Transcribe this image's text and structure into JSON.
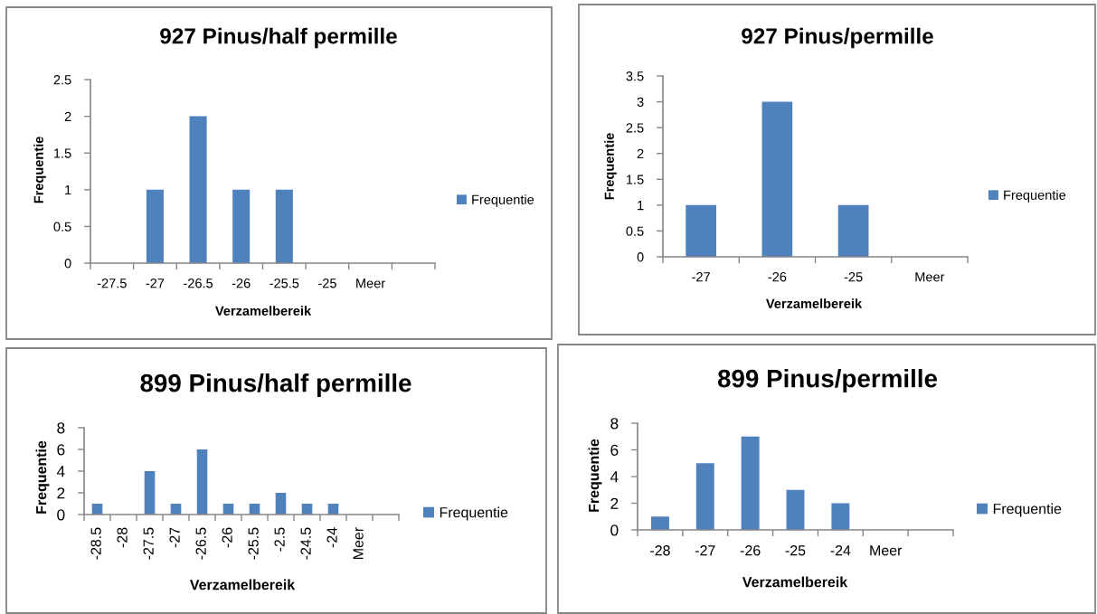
{
  "chart_data": [
    {
      "type": "bar",
      "title": "927 Pinus/half permille",
      "xlabel": "Verzamelbereik",
      "ylabel": "Frequentie",
      "categories": [
        "-27.5",
        "-27",
        "-26.5",
        "-26",
        "-25.5",
        "-25",
        "Meer",
        null
      ],
      "series": [
        {
          "name": "Frequentie",
          "color": "#4f81bd",
          "values": [
            0,
            1,
            2,
            1,
            1,
            0,
            0,
            null
          ]
        }
      ],
      "ylim": [
        0,
        2.5
      ],
      "yticks": [
        0,
        0.5,
        1,
        1.5,
        2,
        2.5
      ],
      "legend": "right"
    },
    {
      "type": "bar",
      "title": "927 Pinus/permille",
      "xlabel": "Verzamelbereik",
      "ylabel": "Frequentie",
      "categories": [
        "-27",
        "-26",
        "-25",
        "Meer"
      ],
      "series": [
        {
          "name": "Frequentie",
          "color": "#4f81bd",
          "values": [
            1,
            3,
            1,
            0
          ]
        }
      ],
      "ylim": [
        0,
        3.5
      ],
      "yticks": [
        0,
        0.5,
        1,
        1.5,
        2,
        2.5,
        3,
        3.5
      ],
      "legend": "right"
    },
    {
      "type": "bar",
      "title": "899 Pinus/half permille",
      "xlabel": "Verzamelbereik",
      "ylabel": "Frequentie",
      "categories": [
        "-28.5",
        "-28",
        "-27.5",
        "-27",
        "-26.5",
        "-26",
        "-25.5",
        "-2.5",
        "-24.5",
        "-24",
        "Meer",
        null
      ],
      "series": [
        {
          "name": "Frequentie",
          "color": "#4f81bd",
          "values": [
            1,
            0,
            4,
            1,
            6,
            1,
            1,
            2,
            1,
            1,
            0,
            null
          ]
        }
      ],
      "ylim": [
        0,
        8
      ],
      "yticks": [
        0,
        2,
        4,
        6,
        8
      ],
      "legend": "right"
    },
    {
      "type": "bar",
      "title": "899 Pinus/permille",
      "xlabel": "Verzamelbereik",
      "ylabel": "Frequentie",
      "categories": [
        "-28",
        "-27",
        "-26",
        "-25",
        "-24",
        "Meer",
        null
      ],
      "series": [
        {
          "name": "Frequentie",
          "color": "#4f81bd",
          "values": [
            1,
            5,
            7,
            3,
            2,
            0,
            null
          ]
        }
      ],
      "ylim": [
        0,
        8
      ],
      "yticks": [
        0,
        2,
        4,
        6,
        8
      ],
      "legend": "right"
    }
  ]
}
